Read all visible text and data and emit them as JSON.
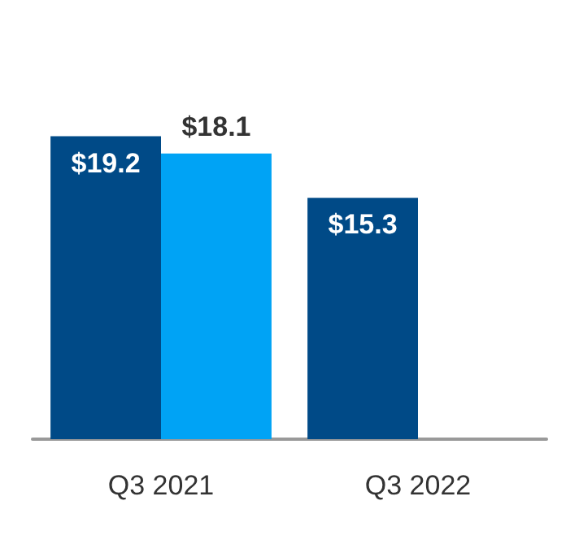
{
  "chart_data": {
    "type": "bar",
    "categories": [
      "Q3 2021",
      "Q3 2022"
    ],
    "series": [
      {
        "color": "#004a87",
        "values": [
          19.2,
          15.3
        ],
        "value_labels": [
          "$19.2",
          "$15.3"
        ]
      },
      {
        "color": "#00a3f5",
        "values": [
          18.1,
          null
        ],
        "value_labels": [
          "$18.1",
          null
        ]
      }
    ]
  }
}
